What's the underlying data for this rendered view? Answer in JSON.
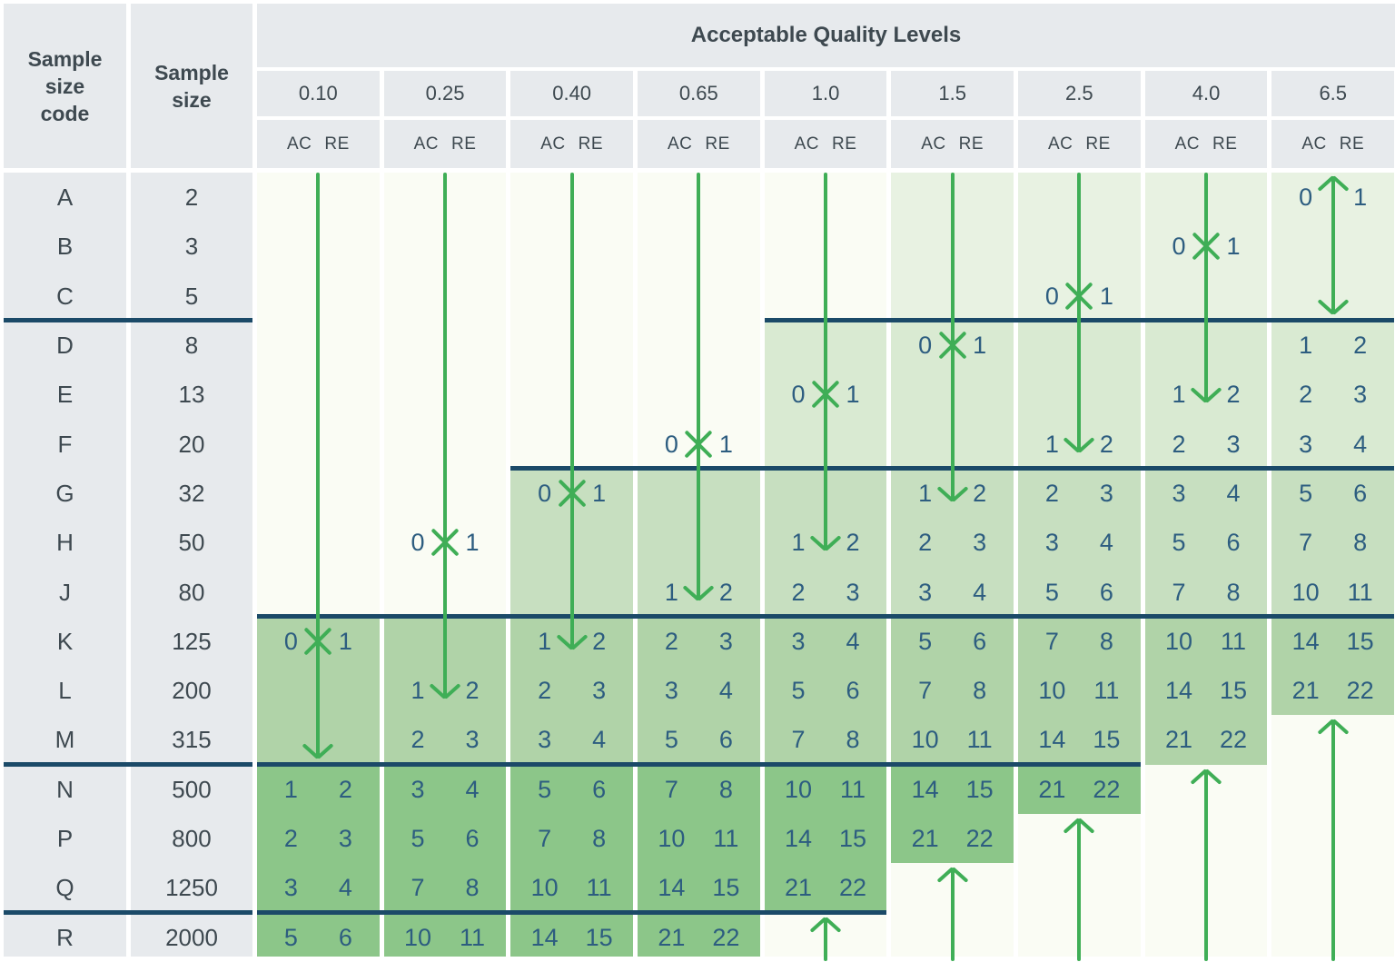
{
  "chart_data": {
    "type": "table",
    "title": "Acceptable Quality Levels",
    "left_headers": {
      "code": [
        "Sample",
        "size",
        "code"
      ],
      "size": [
        "Sample",
        "size"
      ]
    },
    "subheader": {
      "ac": "AC",
      "re": "RE"
    },
    "aql_levels": [
      "0.10",
      "0.25",
      "0.40",
      "0.65",
      "1.0",
      "1.5",
      "2.5",
      "4.0",
      "6.5"
    ],
    "sample_size_codes": [
      "A",
      "B",
      "C",
      "D",
      "E",
      "F",
      "G",
      "H",
      "J",
      "K",
      "L",
      "M",
      "N",
      "P",
      "Q",
      "R"
    ],
    "sample_sizes": [
      "2",
      "3",
      "5",
      "8",
      "13",
      "20",
      "32",
      "50",
      "80",
      "125",
      "200",
      "315",
      "500",
      "800",
      "1250",
      "2000"
    ],
    "columns": [
      {
        "level": "0.10",
        "plans": [
          {
            "row": "K",
            "ac": "0",
            "re": "1"
          },
          {
            "row": "N",
            "ac": "1",
            "re": "2"
          },
          {
            "row": "P",
            "ac": "2",
            "re": "3"
          },
          {
            "row": "Q",
            "ac": "3",
            "re": "4"
          },
          {
            "row": "R",
            "ac": "5",
            "re": "6"
          }
        ]
      },
      {
        "level": "0.25",
        "plans": [
          {
            "row": "H",
            "ac": "0",
            "re": "1"
          },
          {
            "row": "L",
            "ac": "1",
            "re": "2"
          },
          {
            "row": "M",
            "ac": "2",
            "re": "3"
          },
          {
            "row": "N",
            "ac": "3",
            "re": "4"
          },
          {
            "row": "P",
            "ac": "5",
            "re": "6"
          },
          {
            "row": "Q",
            "ac": "7",
            "re": "8"
          },
          {
            "row": "R",
            "ac": "10",
            "re": "11"
          }
        ]
      },
      {
        "level": "0.40",
        "plans": [
          {
            "row": "G",
            "ac": "0",
            "re": "1"
          },
          {
            "row": "K",
            "ac": "1",
            "re": "2"
          },
          {
            "row": "L",
            "ac": "2",
            "re": "3"
          },
          {
            "row": "M",
            "ac": "3",
            "re": "4"
          },
          {
            "row": "N",
            "ac": "5",
            "re": "6"
          },
          {
            "row": "P",
            "ac": "7",
            "re": "8"
          },
          {
            "row": "Q",
            "ac": "10",
            "re": "11"
          },
          {
            "row": "R",
            "ac": "14",
            "re": "15"
          }
        ]
      },
      {
        "level": "0.65",
        "plans": [
          {
            "row": "F",
            "ac": "0",
            "re": "1"
          },
          {
            "row": "J",
            "ac": "1",
            "re": "2"
          },
          {
            "row": "K",
            "ac": "2",
            "re": "3"
          },
          {
            "row": "L",
            "ac": "3",
            "re": "4"
          },
          {
            "row": "M",
            "ac": "5",
            "re": "6"
          },
          {
            "row": "N",
            "ac": "7",
            "re": "8"
          },
          {
            "row": "P",
            "ac": "10",
            "re": "11"
          },
          {
            "row": "Q",
            "ac": "14",
            "re": "15"
          },
          {
            "row": "R",
            "ac": "21",
            "re": "22"
          }
        ]
      },
      {
        "level": "1.0",
        "plans": [
          {
            "row": "E",
            "ac": "0",
            "re": "1"
          },
          {
            "row": "H",
            "ac": "1",
            "re": "2"
          },
          {
            "row": "J",
            "ac": "2",
            "re": "3"
          },
          {
            "row": "K",
            "ac": "3",
            "re": "4"
          },
          {
            "row": "L",
            "ac": "5",
            "re": "6"
          },
          {
            "row": "M",
            "ac": "7",
            "re": "8"
          },
          {
            "row": "N",
            "ac": "10",
            "re": "11"
          },
          {
            "row": "P",
            "ac": "14",
            "re": "15"
          },
          {
            "row": "Q",
            "ac": "21",
            "re": "22"
          }
        ]
      },
      {
        "level": "1.5",
        "plans": [
          {
            "row": "D",
            "ac": "0",
            "re": "1"
          },
          {
            "row": "G",
            "ac": "1",
            "re": "2"
          },
          {
            "row": "H",
            "ac": "2",
            "re": "3"
          },
          {
            "row": "J",
            "ac": "3",
            "re": "4"
          },
          {
            "row": "K",
            "ac": "5",
            "re": "6"
          },
          {
            "row": "L",
            "ac": "7",
            "re": "8"
          },
          {
            "row": "M",
            "ac": "10",
            "re": "11"
          },
          {
            "row": "N",
            "ac": "14",
            "re": "15"
          },
          {
            "row": "P",
            "ac": "21",
            "re": "22"
          }
        ]
      },
      {
        "level": "2.5",
        "plans": [
          {
            "row": "C",
            "ac": "0",
            "re": "1"
          },
          {
            "row": "F",
            "ac": "1",
            "re": "2"
          },
          {
            "row": "G",
            "ac": "2",
            "re": "3"
          },
          {
            "row": "H",
            "ac": "3",
            "re": "4"
          },
          {
            "row": "J",
            "ac": "5",
            "re": "6"
          },
          {
            "row": "K",
            "ac": "7",
            "re": "8"
          },
          {
            "row": "L",
            "ac": "10",
            "re": "11"
          },
          {
            "row": "M",
            "ac": "14",
            "re": "15"
          },
          {
            "row": "N",
            "ac": "21",
            "re": "22"
          }
        ]
      },
      {
        "level": "4.0",
        "plans": [
          {
            "row": "B",
            "ac": "0",
            "re": "1"
          },
          {
            "row": "E",
            "ac": "1",
            "re": "2"
          },
          {
            "row": "F",
            "ac": "2",
            "re": "3"
          },
          {
            "row": "G",
            "ac": "3",
            "re": "4"
          },
          {
            "row": "H",
            "ac": "5",
            "re": "6"
          },
          {
            "row": "J",
            "ac": "7",
            "re": "8"
          },
          {
            "row": "K",
            "ac": "10",
            "re": "11"
          },
          {
            "row": "L",
            "ac": "14",
            "re": "15"
          },
          {
            "row": "M",
            "ac": "21",
            "re": "22"
          }
        ]
      },
      {
        "level": "6.5",
        "plans": [
          {
            "row": "A",
            "ac": "0",
            "re": "1"
          },
          {
            "row": "D",
            "ac": "1",
            "re": "2"
          },
          {
            "row": "E",
            "ac": "2",
            "re": "3"
          },
          {
            "row": "F",
            "ac": "3",
            "re": "4"
          },
          {
            "row": "G",
            "ac": "5",
            "re": "6"
          },
          {
            "row": "H",
            "ac": "7",
            "re": "8"
          },
          {
            "row": "J",
            "ac": "10",
            "re": "11"
          },
          {
            "row": "K",
            "ac": "14",
            "re": "15"
          },
          {
            "row": "L",
            "ac": "21",
            "re": "22"
          }
        ]
      }
    ]
  },
  "styling": {
    "colors": {
      "header_bg": "#e7eaed",
      "cell_base": "#fafcf4",
      "band_g1": "#e8f2e2",
      "band_g2": "#d9ead2",
      "band_g3": "#c7dfc0",
      "band_g4": "#b0d3a8",
      "band_g5": "#8cc689",
      "rule": "#1b4a68",
      "navy_text": "#2d5d80",
      "slate_text": "#3e4950",
      "arrow_green": "#3fae56"
    },
    "bands": {
      "0.10": [
        {
          "from": "A",
          "to": "J",
          "shade": "base"
        },
        {
          "from": "K",
          "to": "M",
          "shade": "g4"
        },
        {
          "from": "N",
          "to": "R",
          "shade": "g5"
        }
      ],
      "0.25": [
        {
          "from": "A",
          "to": "J",
          "shade": "base"
        },
        {
          "from": "K",
          "to": "M",
          "shade": "g4"
        },
        {
          "from": "N",
          "to": "R",
          "shade": "g5"
        }
      ],
      "0.40": [
        {
          "from": "A",
          "to": "F",
          "shade": "base"
        },
        {
          "from": "G",
          "to": "J",
          "shade": "g3"
        },
        {
          "from": "K",
          "to": "M",
          "shade": "g4"
        },
        {
          "from": "N",
          "to": "R",
          "shade": "g5"
        }
      ],
      "0.65": [
        {
          "from": "A",
          "to": "F",
          "shade": "base"
        },
        {
          "from": "G",
          "to": "J",
          "shade": "g3"
        },
        {
          "from": "K",
          "to": "M",
          "shade": "g4"
        },
        {
          "from": "N",
          "to": "R",
          "shade": "g5"
        }
      ],
      "1.0": [
        {
          "from": "A",
          "to": "C",
          "shade": "base"
        },
        {
          "from": "D",
          "to": "F",
          "shade": "g2"
        },
        {
          "from": "G",
          "to": "J",
          "shade": "g3"
        },
        {
          "from": "K",
          "to": "M",
          "shade": "g4"
        },
        {
          "from": "N",
          "to": "Q",
          "shade": "g5"
        },
        {
          "from": "R",
          "to": "R",
          "shade": "base"
        }
      ],
      "1.5": [
        {
          "from": "A",
          "to": "C",
          "shade": "g1"
        },
        {
          "from": "D",
          "to": "F",
          "shade": "g2"
        },
        {
          "from": "G",
          "to": "J",
          "shade": "g3"
        },
        {
          "from": "K",
          "to": "M",
          "shade": "g4"
        },
        {
          "from": "N",
          "to": "P",
          "shade": "g5"
        },
        {
          "from": "Q",
          "to": "R",
          "shade": "base"
        }
      ],
      "2.5": [
        {
          "from": "A",
          "to": "C",
          "shade": "g1"
        },
        {
          "from": "D",
          "to": "F",
          "shade": "g2"
        },
        {
          "from": "G",
          "to": "J",
          "shade": "g3"
        },
        {
          "from": "K",
          "to": "M",
          "shade": "g4"
        },
        {
          "from": "N",
          "to": "N",
          "shade": "g5"
        },
        {
          "from": "P",
          "to": "R",
          "shade": "base"
        }
      ],
      "4.0": [
        {
          "from": "A",
          "to": "C",
          "shade": "g1"
        },
        {
          "from": "D",
          "to": "F",
          "shade": "g2"
        },
        {
          "from": "G",
          "to": "J",
          "shade": "g3"
        },
        {
          "from": "K",
          "to": "M",
          "shade": "g4"
        },
        {
          "from": "N",
          "to": "R",
          "shade": "base"
        }
      ],
      "6.5": [
        {
          "from": "A",
          "to": "C",
          "shade": "g1"
        },
        {
          "from": "D",
          "to": "F",
          "shade": "g2"
        },
        {
          "from": "G",
          "to": "J",
          "shade": "g3"
        },
        {
          "from": "K",
          "to": "L",
          "shade": "g4"
        },
        {
          "from": "M",
          "to": "R",
          "shade": "base"
        }
      ]
    },
    "step_lines": [
      {
        "below_row": "C",
        "spans_left_columns": true,
        "from_level": "1.0",
        "to_level": "6.5"
      },
      {
        "below_row": "F",
        "spans_left_columns": false,
        "from_level": "0.40",
        "to_level": "6.5"
      },
      {
        "below_row": "J",
        "spans_left_columns": false,
        "from_level": "0.10",
        "to_level": "6.5"
      },
      {
        "below_row": "M",
        "spans_left_columns": true,
        "from_level": "0.10",
        "to_level": "2.5"
      },
      {
        "below_row": "Q",
        "spans_left_columns": true,
        "from_level": "0.10",
        "to_level": "1.0"
      }
    ],
    "down_arrows": [
      {
        "level": "0.10",
        "cross_row": "K",
        "tip_at_line_below": "M"
      },
      {
        "level": "0.25",
        "cross_row": "H",
        "tip_at_row": "L"
      },
      {
        "level": "0.40",
        "cross_row": "G",
        "tip_at_row": "K"
      },
      {
        "level": "0.65",
        "cross_row": "F",
        "tip_at_row": "J"
      },
      {
        "level": "1.0",
        "cross_row": "E",
        "tip_at_row": "H"
      },
      {
        "level": "1.5",
        "cross_row": "D",
        "tip_at_row": "G"
      },
      {
        "level": "2.5",
        "cross_row": "C",
        "tip_at_row": "F"
      },
      {
        "level": "4.0",
        "cross_row": "B",
        "tip_at_row": "E"
      },
      {
        "level": "6.5",
        "double_headed": true,
        "top_at_row": "A",
        "tip_at_line_below": "C"
      }
    ],
    "up_arrows": [
      {
        "level": "1.0",
        "tip_at_row": "R"
      },
      {
        "level": "1.5",
        "tip_at_row": "Q"
      },
      {
        "level": "2.5",
        "tip_at_row": "P"
      },
      {
        "level": "4.0",
        "tip_at_row": "N"
      },
      {
        "level": "6.5",
        "tip_at_row": "M"
      }
    ]
  }
}
